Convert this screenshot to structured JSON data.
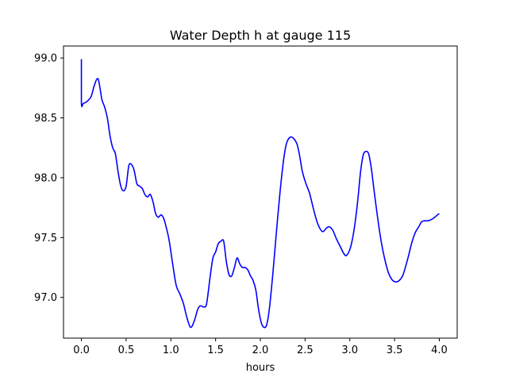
{
  "chart_data": {
    "type": "line",
    "title": "Water Depth h at gauge 115",
    "xlabel": "hours",
    "ylabel": "",
    "xlim": [
      -0.2,
      4.2
    ],
    "ylim": [
      96.66,
      99.1
    ],
    "xticks": [
      0.0,
      0.5,
      1.0,
      1.5,
      2.0,
      2.5,
      3.0,
      3.5,
      4.0
    ],
    "xtick_labels": [
      "0.0",
      "0.5",
      "1.0",
      "1.5",
      "2.0",
      "2.5",
      "3.0",
      "3.5",
      "4.0"
    ],
    "yticks": [
      97.0,
      97.5,
      98.0,
      98.5,
      99.0
    ],
    "ytick_labels": [
      "97.0",
      "97.5",
      "98.0",
      "98.5",
      "99.0"
    ],
    "grid": false,
    "series": [
      {
        "color": "#0000ff",
        "x": [
          0.0,
          0.0,
          0.02,
          0.05,
          0.08,
          0.11,
          0.14,
          0.17,
          0.19,
          0.21,
          0.23,
          0.26,
          0.29,
          0.32,
          0.35,
          0.38,
          0.41,
          0.44,
          0.47,
          0.5,
          0.53,
          0.56,
          0.59,
          0.62,
          0.65,
          0.68,
          0.71,
          0.74,
          0.77,
          0.8,
          0.83,
          0.86,
          0.89,
          0.92,
          0.95,
          0.98,
          1.02,
          1.06,
          1.1,
          1.14,
          1.18,
          1.22,
          1.26,
          1.3,
          1.33,
          1.37,
          1.4,
          1.44,
          1.47,
          1.5,
          1.53,
          1.56,
          1.59,
          1.62,
          1.65,
          1.68,
          1.71,
          1.74,
          1.77,
          1.8,
          1.83,
          1.86,
          1.89,
          1.92,
          1.95,
          1.98,
          2.01,
          2.04,
          2.07,
          2.1,
          2.14,
          2.18,
          2.22,
          2.26,
          2.29,
          2.32,
          2.35,
          2.38,
          2.41,
          2.44,
          2.47,
          2.51,
          2.55,
          2.59,
          2.63,
          2.67,
          2.7,
          2.74,
          2.77,
          2.81,
          2.85,
          2.89,
          2.93,
          2.96,
          3.0,
          3.03,
          3.06,
          3.09,
          3.12,
          3.15,
          3.18,
          3.21,
          3.24,
          3.27,
          3.31,
          3.35,
          3.39,
          3.43,
          3.47,
          3.51,
          3.55,
          3.59,
          3.62,
          3.65,
          3.69,
          3.73,
          3.77,
          3.8,
          3.83,
          3.87,
          3.91,
          3.95,
          3.98,
          4.0
        ],
        "y": [
          98.99,
          98.62,
          98.62,
          98.63,
          98.65,
          98.68,
          98.76,
          98.82,
          98.82,
          98.74,
          98.65,
          98.59,
          98.5,
          98.35,
          98.25,
          98.2,
          98.05,
          97.93,
          97.89,
          97.93,
          98.1,
          98.11,
          98.06,
          97.95,
          97.93,
          97.91,
          97.86,
          97.84,
          97.86,
          97.8,
          97.7,
          97.67,
          97.69,
          97.66,
          97.58,
          97.48,
          97.28,
          97.1,
          97.03,
          96.95,
          96.83,
          96.75,
          96.8,
          96.9,
          96.93,
          96.92,
          96.95,
          97.18,
          97.33,
          97.38,
          97.45,
          97.47,
          97.47,
          97.3,
          97.19,
          97.18,
          97.25,
          97.33,
          97.28,
          97.25,
          97.25,
          97.23,
          97.18,
          97.14,
          97.06,
          96.9,
          96.79,
          96.75,
          96.77,
          96.9,
          97.2,
          97.55,
          97.88,
          98.15,
          98.28,
          98.33,
          98.34,
          98.32,
          98.28,
          98.18,
          98.05,
          97.95,
          97.87,
          97.75,
          97.64,
          97.57,
          97.55,
          97.58,
          97.59,
          97.56,
          97.49,
          97.43,
          97.37,
          97.35,
          97.4,
          97.49,
          97.63,
          97.82,
          98.05,
          98.19,
          98.22,
          98.2,
          98.08,
          97.9,
          97.67,
          97.47,
          97.32,
          97.21,
          97.15,
          97.13,
          97.14,
          97.18,
          97.25,
          97.33,
          97.45,
          97.54,
          97.59,
          97.63,
          97.64,
          97.64,
          97.65,
          97.67,
          97.69,
          97.7
        ]
      }
    ]
  }
}
